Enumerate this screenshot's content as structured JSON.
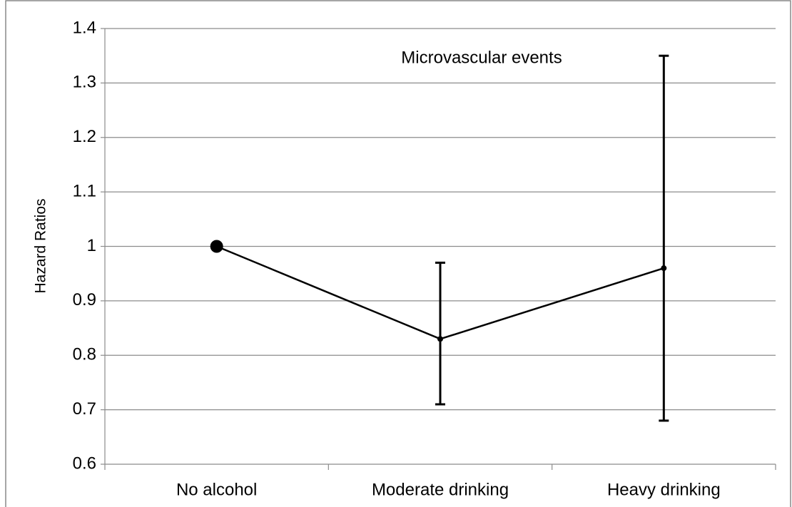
{
  "chart_data": {
    "type": "line",
    "title": "Microvascular events",
    "y_label": "Hazard Ratios",
    "categories": [
      "No alcohol",
      "Moderate drinking",
      "Heavy drinking"
    ],
    "series": [
      {
        "name": null,
        "color": "#000000",
        "values": [
          1.0,
          0.83,
          0.96
        ],
        "ci_lower": [
          null,
          0.71,
          0.68
        ],
        "ci_upper": [
          null,
          0.97,
          1.35
        ]
      }
    ],
    "ylim": [
      0.6,
      1.4
    ],
    "yticks": [
      0.6,
      0.7,
      0.8,
      0.9,
      1,
      1.1,
      1.2,
      1.3,
      1.4
    ],
    "grid": true
  }
}
